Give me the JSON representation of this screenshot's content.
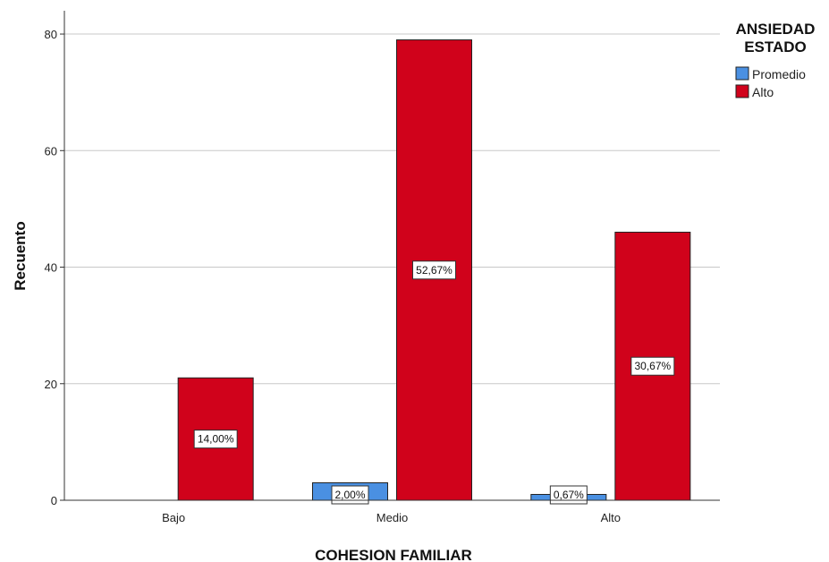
{
  "chart_data": {
    "type": "bar",
    "title": "",
    "xlabel": "COHESION FAMILIAR",
    "ylabel": "Recuento",
    "categories": [
      "Bajo",
      "Medio",
      "Alto"
    ],
    "ylim": [
      0,
      84
    ],
    "yticks": [
      "0",
      "20",
      "40",
      "60",
      "80"
    ],
    "grid": true,
    "legend": {
      "title_lines": [
        "ANSIEDAD",
        "ESTADO"
      ],
      "placement": "top-right"
    },
    "series": [
      {
        "name": "Promedio",
        "color": "#4a90e2",
        "values": [
          0,
          3,
          1
        ],
        "labels": [
          "",
          "2,00%",
          "0,67%"
        ]
      },
      {
        "name": "Alto",
        "color": "#d0021b",
        "values": [
          21,
          79,
          46
        ],
        "labels": [
          "14,00%",
          "52,67%",
          "30,67%"
        ]
      }
    ]
  }
}
